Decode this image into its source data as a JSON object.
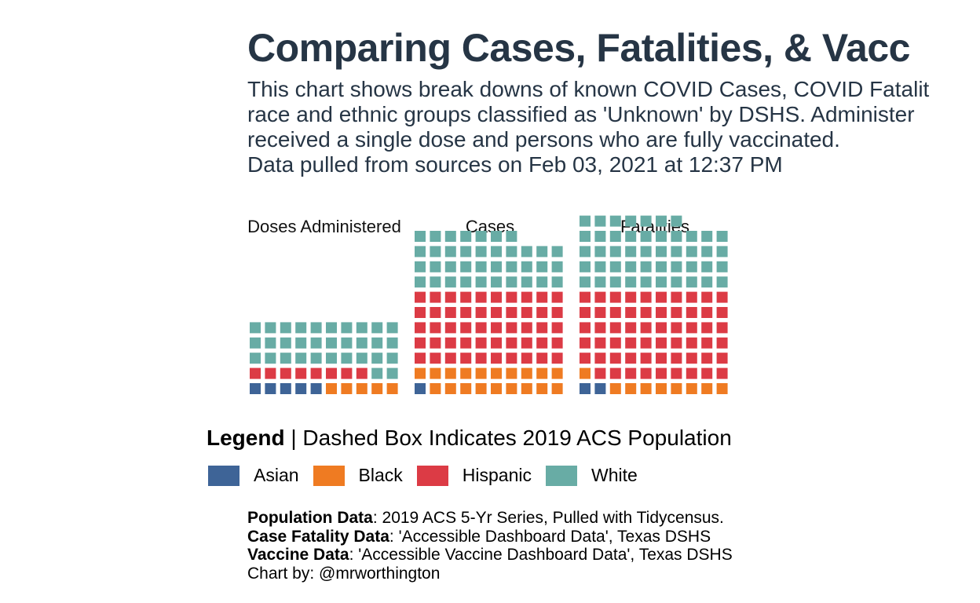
{
  "title": "Comparing Cases, Fatalities, & Vacc",
  "subtitle_lines": [
    "This chart shows break downs of known COVID Cases, COVID Fatalit",
    "race and ethnic groups classified as 'Unknown' by DSHS. Administer",
    "received a single dose and persons who are fully vaccinated.",
    "Data pulled from sources on Feb 03, 2021 at 12:37 PM"
  ],
  "legend": {
    "heading": "Legend",
    "note": " | Dashed Box Indicates 2019 ACS Population",
    "items": [
      {
        "label": "Asian",
        "color": "#3e6497"
      },
      {
        "label": "Black",
        "color": "#ef7b22"
      },
      {
        "label": "Hispanic",
        "color": "#dc3b45"
      },
      {
        "label": "White",
        "color": "#68aca5"
      }
    ]
  },
  "credits": [
    {
      "label": "Population Data",
      "text": ": 2019 ACS 5-Yr Series, Pulled with Tidycensus."
    },
    {
      "label": "Case Fatality Data",
      "text": ": 'Accessible Dashboard Data', Texas DSHS"
    },
    {
      "label": "Vaccine Data",
      "text": ": 'Accessible Vaccine Dashboard Data', Texas DSHS"
    },
    {
      "label": "",
      "text": "Chart by: @mrworthington"
    }
  ],
  "chart_data": {
    "type": "waffle",
    "series_order": [
      "Asian",
      "Black",
      "Hispanic",
      "White"
    ],
    "panels": [
      {
        "name": "Doses Administered",
        "shown_label": "Doses Administered",
        "counts": {
          "Asian": 5,
          "Black": 5,
          "Hispanic": 8,
          "White": 32
        }
      },
      {
        "name": "Cases",
        "shown_label": "Cases",
        "counts": {
          "Asian": 1,
          "Black": 19,
          "Hispanic": 50,
          "White": 37
        }
      },
      {
        "name": "Fatalities",
        "shown_label": "Fatalities",
        "counts": {
          "Asian": 2,
          "Black": 9,
          "Hispanic": 59,
          "White": 47
        }
      }
    ]
  }
}
